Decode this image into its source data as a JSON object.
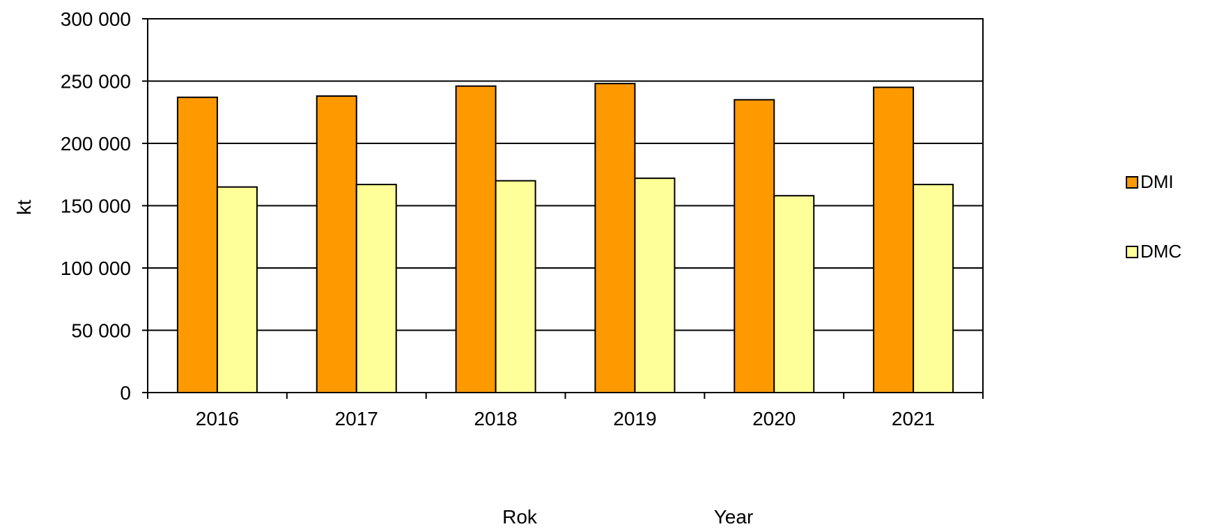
{
  "chart_data": {
    "type": "bar",
    "categories": [
      "2016",
      "2017",
      "2018",
      "2019",
      "2020",
      "2021"
    ],
    "series": [
      {
        "name": "DMI",
        "color": "#FF9900",
        "values": [
          237000,
          238000,
          246000,
          248000,
          235000,
          245000
        ]
      },
      {
        "name": "DMC",
        "color": "#FFFF99",
        "values": [
          165000,
          167000,
          170000,
          172000,
          158000,
          167000
        ]
      }
    ],
    "ylabel": "kt",
    "xlabel_left": "Rok",
    "xlabel_right": "Year",
    "ylim": [
      0,
      300000
    ],
    "ytick_values": [
      0,
      50000,
      100000,
      150000,
      200000,
      250000,
      300000
    ],
    "ytick_labels": [
      "0",
      "50 000",
      "100 000",
      "150 000",
      "200 000",
      "250 000",
      "300 000"
    ],
    "grid": true,
    "legend_position": "right"
  }
}
